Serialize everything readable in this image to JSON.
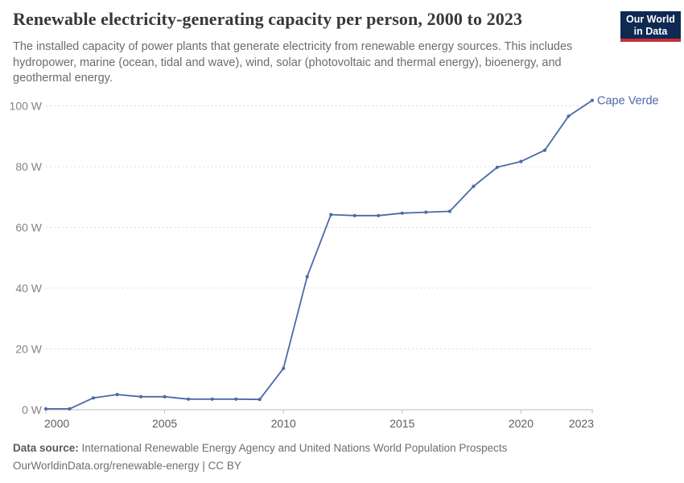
{
  "header": {
    "title": "Renewable electricity-generating capacity per person, 2000 to 2023",
    "subtitle_lines": [
      "The installed capacity of power plants that generate electricity from renewable energy sources. This includes",
      "hydropower, marine (ocean, tidal and wave), wind, solar (photovoltaic and thermal energy), bioenergy, and",
      "geothermal energy."
    ],
    "logo": {
      "line1": "Our World",
      "line2": "in Data"
    }
  },
  "chart_data": {
    "type": "line",
    "title": "Renewable electricity-generating capacity per person, 2000 to 2023",
    "entity": "Cape Verde",
    "unit": "W",
    "x": [
      2000,
      2001,
      2002,
      2003,
      2004,
      2005,
      2006,
      2007,
      2008,
      2009,
      2010,
      2011,
      2012,
      2013,
      2014,
      2015,
      2016,
      2017,
      2018,
      2019,
      2020,
      2021,
      2022,
      2023
    ],
    "series": [
      {
        "name": "Cape Verde",
        "color": "#4a69a8",
        "values": [
          0.3,
          0.3,
          3.9,
          5.0,
          4.3,
          4.3,
          3.5,
          3.5,
          3.5,
          3.4,
          13.6,
          43.8,
          64.2,
          63.9,
          63.9,
          64.7,
          65.0,
          65.3,
          73.5,
          79.8,
          81.7,
          85.4,
          96.6,
          101.8
        ]
      }
    ],
    "xlim": [
      2000,
      2023
    ],
    "ylim": [
      0,
      100
    ],
    "x_ticks": [
      2000,
      2005,
      2010,
      2015,
      2020,
      2023
    ],
    "y_ticks": [
      0,
      20,
      40,
      60,
      80,
      100
    ],
    "y_tick_suffix": " W",
    "grid": "horizontal-dashed",
    "legend_position": "end-of-line-label"
  },
  "colors": {
    "line": "#4a69a8",
    "grid": "#dcdcdc",
    "axis": "#bdbdbd",
    "y_tick_label": "#848484",
    "x_tick_label": "#5e5e5e",
    "logo_bg": "#0e2a52",
    "logo_stripe": "#c5313a"
  },
  "footer": {
    "data_source_label": "Data source:",
    "data_source_text": "International Renewable Energy Agency and United Nations World Population Prospects",
    "url": "OurWorldinData.org/renewable-energy",
    "separator": "|",
    "license": "CC BY"
  }
}
